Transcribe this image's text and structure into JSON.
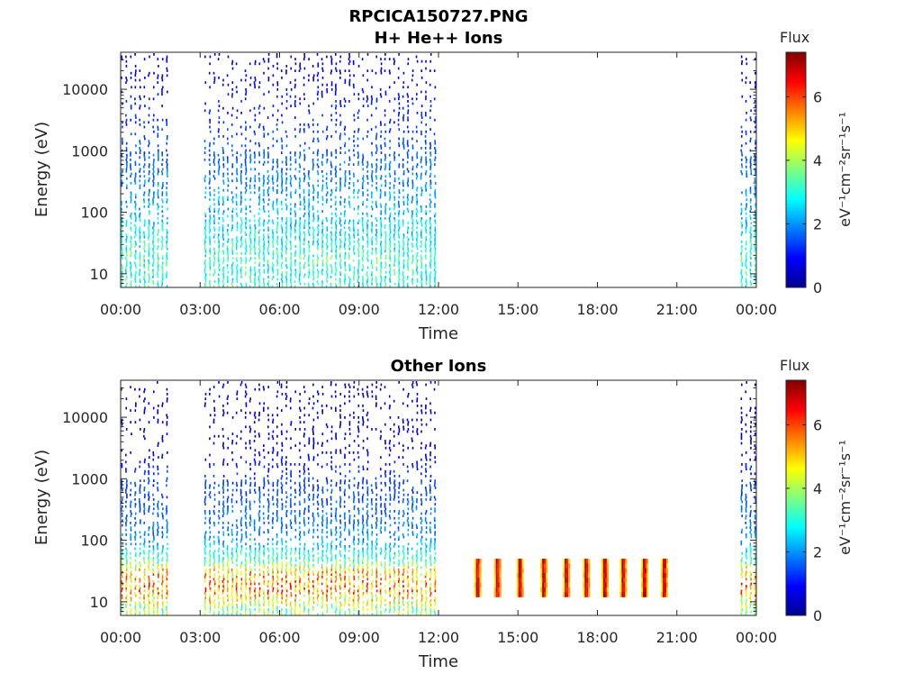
{
  "figure_title": "RPCICA150727.PNG",
  "chart_data": [
    {
      "type": "heatmap",
      "title": "H+ He++ Ions",
      "xlabel": "Time",
      "ylabel": "Energy (eV)",
      "x_ticks": [
        "00:00",
        "03:00",
        "06:00",
        "09:00",
        "12:00",
        "15:00",
        "18:00",
        "21:00",
        "00:00"
      ],
      "xlim_hours": [
        0,
        24
      ],
      "y_scale": "log",
      "ylim": [
        6,
        40000
      ],
      "y_ticks": [
        {
          "value": 10,
          "label": "10"
        },
        {
          "value": 100,
          "label": "100"
        },
        {
          "value": 1000,
          "label": "1000"
        },
        {
          "value": 10000,
          "label": "10000"
        }
      ],
      "colorbar": {
        "label": "Flux",
        "unit": "eV⁻¹cm⁻²sr⁻¹s⁻¹",
        "range": [
          0,
          7.4
        ],
        "ticks": [
          "0",
          "2",
          "4",
          "6"
        ],
        "colormap": "jet"
      },
      "data_intervals_hours": [
        [
          0,
          1.85
        ],
        [
          3.15,
          11.85
        ],
        [
          23.4,
          24
        ]
      ],
      "scan_period_hours": 0.17,
      "flux_profile": [
        {
          "energy_eV": 8,
          "flux": 3.0
        },
        {
          "energy_eV": 20,
          "flux": 3.2
        },
        {
          "energy_eV": 40,
          "flux": 2.8
        },
        {
          "energy_eV": 100,
          "flux": 2.3
        },
        {
          "energy_eV": 1000,
          "flux": 1.5
        },
        {
          "energy_eV": 10000,
          "flux": 0.9
        },
        {
          "energy_eV": 35000,
          "flux": 0.6
        }
      ]
    },
    {
      "type": "heatmap",
      "title": "Other Ions",
      "xlabel": "Time",
      "ylabel": "Energy (eV)",
      "x_ticks": [
        "00:00",
        "03:00",
        "06:00",
        "09:00",
        "12:00",
        "15:00",
        "18:00",
        "21:00",
        "00:00"
      ],
      "xlim_hours": [
        0,
        24
      ],
      "y_scale": "log",
      "ylim": [
        6,
        40000
      ],
      "y_ticks": [
        {
          "value": 10,
          "label": "10"
        },
        {
          "value": 100,
          "label": "100"
        },
        {
          "value": 1000,
          "label": "1000"
        },
        {
          "value": 10000,
          "label": "10000"
        }
      ],
      "colorbar": {
        "label": "Flux",
        "unit": "eV⁻¹cm⁻²sr⁻¹s⁻¹",
        "range": [
          0,
          7.4
        ],
        "ticks": [
          "0",
          "2",
          "4",
          "6"
        ],
        "colormap": "jet"
      },
      "data_intervals_hours": [
        [
          0,
          1.85
        ],
        [
          3.15,
          11.85
        ],
        [
          23.4,
          24
        ]
      ],
      "scan_period_hours": 0.17,
      "flux_profile": [
        {
          "energy_eV": 8,
          "flux": 3.8
        },
        {
          "energy_eV": 15,
          "flux": 5.5
        },
        {
          "energy_eV": 30,
          "flux": 5.0
        },
        {
          "energy_eV": 45,
          "flux": 3.5
        },
        {
          "energy_eV": 100,
          "flux": 2.0
        },
        {
          "energy_eV": 1000,
          "flux": 1.3
        },
        {
          "energy_eV": 3000,
          "flux": 0.7
        }
      ],
      "burst_times_hours": [
        13.45,
        14.2,
        15.05,
        15.95,
        16.8,
        17.55,
        18.25,
        18.95,
        19.75,
        20.5
      ],
      "burst_energy_range_eV": [
        12,
        50
      ],
      "burst_flux": 7.0
    }
  ]
}
